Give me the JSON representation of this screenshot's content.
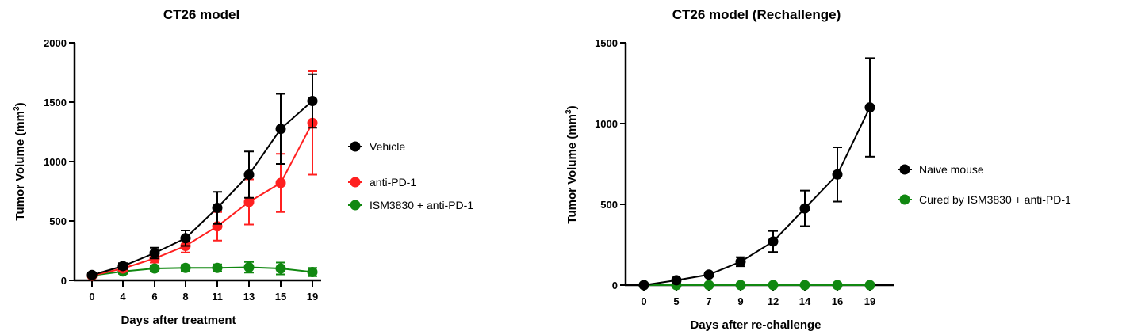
{
  "chart_data": [
    {
      "type": "line",
      "title": "CT26 model",
      "xlabel": "Days after treatment",
      "ylabel_main": "Tumor Volume (mm",
      "ylabel_sup": "3",
      "ylabel_close": ")",
      "categories": [
        "0",
        "4",
        "6",
        "8",
        "11",
        "13",
        "15",
        "19"
      ],
      "ylim": [
        0,
        2000
      ],
      "yticks": [
        0,
        500,
        1000,
        1500,
        2000
      ],
      "legend_position": "right",
      "series": [
        {
          "name": "Vehicle",
          "color": "#000000",
          "values": [
            45,
            120,
            230,
            355,
            610,
            890,
            1275,
            1510
          ],
          "errors": [
            15,
            25,
            45,
            65,
            135,
            195,
            295,
            225
          ]
        },
        {
          "name": "anti-PD-1",
          "color": "#ff2020",
          "values": [
            40,
            100,
            185,
            290,
            455,
            660,
            820,
            1325
          ],
          "errors": [
            15,
            20,
            35,
            55,
            120,
            190,
            245,
            435
          ]
        },
        {
          "name": "ISM3830 + anti-PD-1",
          "color": "#118811",
          "values": [
            40,
            75,
            100,
            105,
            105,
            110,
            100,
            70
          ],
          "errors": [
            10,
            20,
            25,
            25,
            30,
            45,
            50,
            35
          ]
        }
      ]
    },
    {
      "type": "line",
      "title": "CT26 model (Rechallenge)",
      "xlabel": "Days after re-challenge",
      "ylabel_main": "Tumor Volume (mm",
      "ylabel_sup": "3",
      "ylabel_close": ")",
      "categories": [
        "0",
        "5",
        "7",
        "9",
        "12",
        "14",
        "16",
        "19"
      ],
      "ylim": [
        0,
        1500
      ],
      "yticks": [
        0,
        500,
        1000,
        1500
      ],
      "legend_position": "right",
      "series": [
        {
          "name": "Naive mouse",
          "color": "#000000",
          "values": [
            0,
            30,
            65,
            145,
            270,
            475,
            685,
            1100
          ],
          "errors": [
            0,
            8,
            12,
            28,
            65,
            110,
            168,
            305
          ]
        },
        {
          "name": "Cured by ISM3830 + anti-PD-1",
          "color": "#118811",
          "values": [
            0,
            0,
            0,
            0,
            0,
            0,
            0,
            0
          ],
          "errors": [
            0,
            0,
            0,
            0,
            0,
            0,
            0,
            0
          ]
        }
      ]
    }
  ]
}
